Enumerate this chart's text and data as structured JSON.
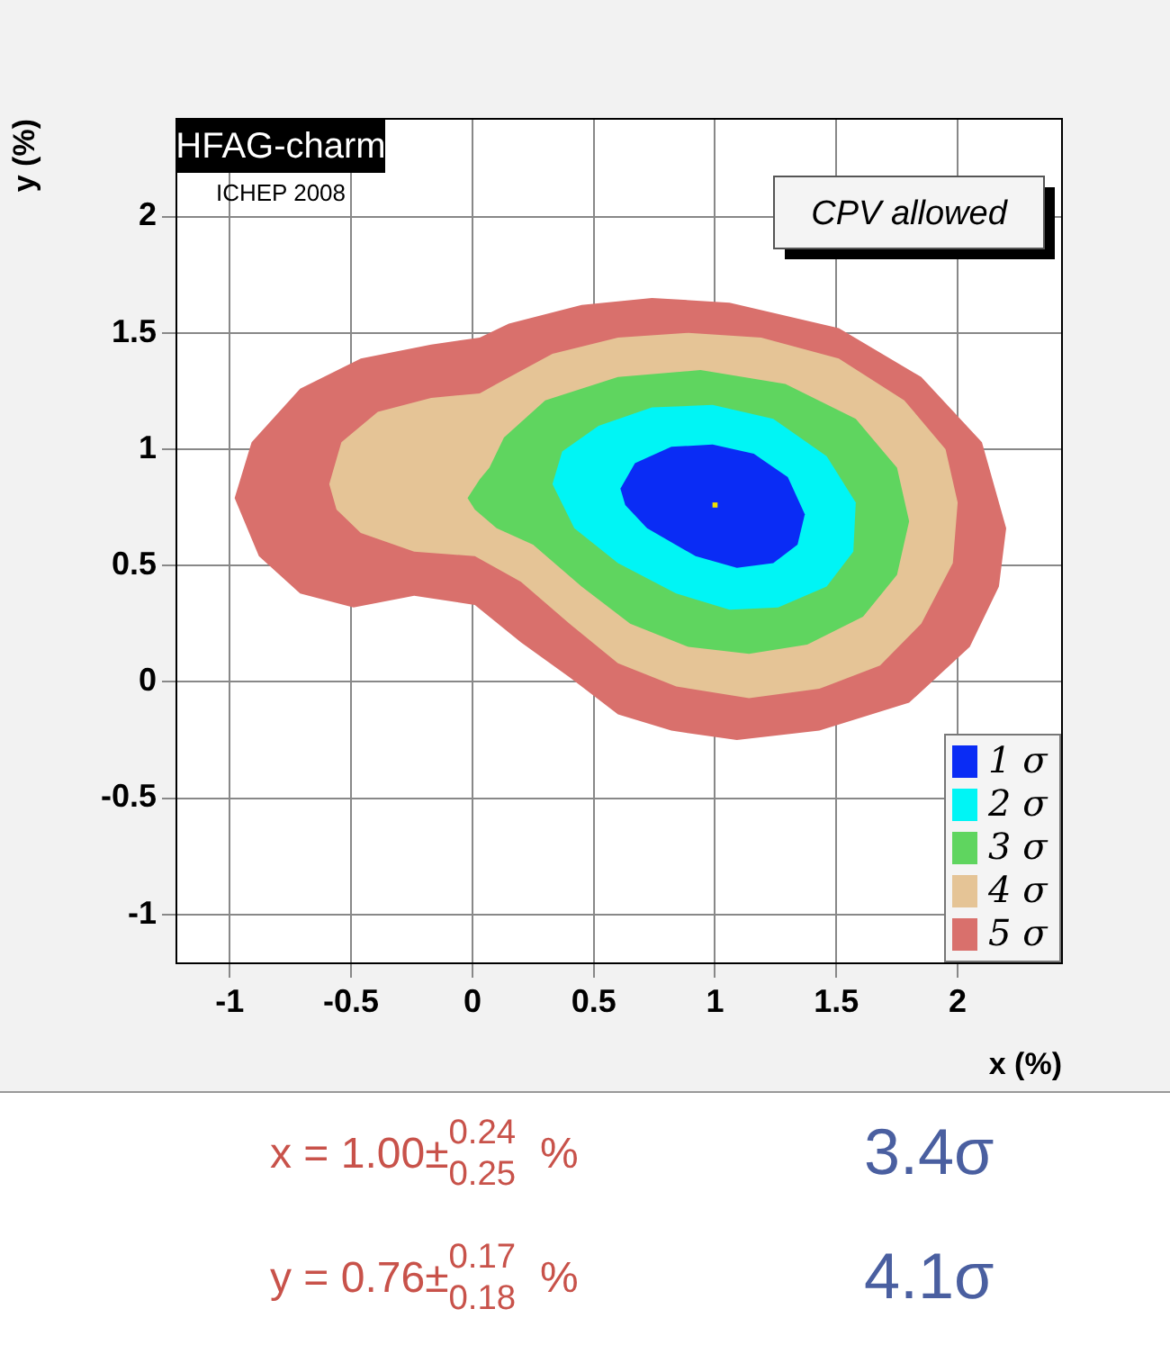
{
  "chart_data": {
    "type": "area",
    "xlabel": "x (%)",
    "ylabel": "y (%)",
    "xlim": [
      -1.22,
      2.43
    ],
    "ylim": [
      -1.21,
      2.42
    ],
    "xticks": [
      -1,
      -0.5,
      0,
      0.5,
      1,
      1.5,
      2
    ],
    "yticks": [
      -1,
      -0.5,
      0,
      0.5,
      1,
      1.5,
      2
    ],
    "grid": true,
    "legend": "bottom right",
    "series": [
      {
        "name": "1 σ",
        "color": "#0a2cf5",
        "x": [
          0.61,
          0.67,
          0.82,
          0.99,
          1.16,
          1.3,
          1.37,
          1.34,
          1.24,
          1.09,
          0.92,
          0.72,
          0.63
        ],
        "values": [
          0.83,
          0.94,
          1.01,
          1.02,
          0.98,
          0.88,
          0.72,
          0.59,
          0.51,
          0.49,
          0.54,
          0.66,
          0.76
        ]
      },
      {
        "name": "2 σ",
        "color": "#00f5f5",
        "x": [
          0.33,
          0.37,
          0.52,
          0.74,
          0.99,
          1.24,
          1.46,
          1.58,
          1.57,
          1.46,
          1.26,
          1.06,
          0.84,
          0.6,
          0.42
        ],
        "values": [
          0.85,
          0.99,
          1.1,
          1.18,
          1.19,
          1.13,
          0.97,
          0.77,
          0.56,
          0.41,
          0.32,
          0.31,
          0.38,
          0.51,
          0.66
        ]
      },
      {
        "name": "3 σ",
        "color": "#5fd55f",
        "x": [
          -0.02,
          0.03,
          0.07,
          0.13,
          0.3,
          0.6,
          0.94,
          1.29,
          1.58,
          1.75,
          1.8,
          1.75,
          1.61,
          1.38,
          1.14,
          0.89,
          0.65,
          0.45,
          0.25,
          0.1,
          0.01
        ],
        "values": [
          0.79,
          0.87,
          0.92,
          1.05,
          1.21,
          1.31,
          1.34,
          1.28,
          1.13,
          0.92,
          0.69,
          0.46,
          0.28,
          0.16,
          0.12,
          0.15,
          0.25,
          0.41,
          0.59,
          0.66,
          0.74
        ]
      },
      {
        "name": "4 σ",
        "color": "#e5c496",
        "x": [
          -0.59,
          -0.54,
          -0.39,
          -0.17,
          0.03,
          0.1,
          0.33,
          0.6,
          0.89,
          1.19,
          1.51,
          1.78,
          1.95,
          2.0,
          1.98,
          1.85,
          1.68,
          1.43,
          1.14,
          0.84,
          0.6,
          0.4,
          0.2,
          0.01,
          -0.24,
          -0.46,
          -0.56
        ],
        "values": [
          0.85,
          1.03,
          1.16,
          1.22,
          1.24,
          1.28,
          1.41,
          1.48,
          1.5,
          1.48,
          1.39,
          1.21,
          1.0,
          0.77,
          0.51,
          0.25,
          0.07,
          -0.03,
          -0.07,
          -0.02,
          0.08,
          0.25,
          0.43,
          0.54,
          0.56,
          0.64,
          0.74
        ]
      },
      {
        "name": "5 σ",
        "color": "#d9706c",
        "x": [
          -0.98,
          -0.91,
          -0.71,
          -0.46,
          -0.17,
          0.03,
          0.15,
          0.45,
          0.74,
          1.06,
          1.51,
          1.85,
          2.1,
          2.2,
          2.17,
          2.05,
          1.8,
          1.43,
          1.09,
          0.82,
          0.6,
          0.4,
          0.2,
          0.01,
          -0.24,
          -0.49,
          -0.71,
          -0.88
        ],
        "values": [
          0.79,
          1.03,
          1.26,
          1.39,
          1.45,
          1.48,
          1.54,
          1.62,
          1.65,
          1.63,
          1.52,
          1.31,
          1.03,
          0.66,
          0.41,
          0.15,
          -0.09,
          -0.21,
          -0.25,
          -0.21,
          -0.14,
          0.02,
          0.17,
          0.33,
          0.37,
          0.32,
          0.38,
          0.54
        ]
      },
      {
        "type": "scatter",
        "color": "#f0e000",
        "marker": "square",
        "x": [
          1.0
        ],
        "values": [
          0.76
        ]
      }
    ],
    "annotations": [
      "HFAG-charm",
      "ICHEP 2008",
      "CPV allowed",
      "x = 1.00±$^{0.24}$$_{0.25}$ %",
      "3.4σ",
      "y = 0.76±$^{0.17}$$_{0.18}$ %",
      "4.1σ"
    ]
  }
}
